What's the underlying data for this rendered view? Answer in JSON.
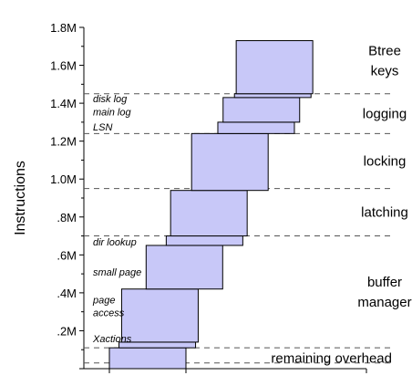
{
  "chart_data": {
    "type": "bar",
    "subtype": "floating-stacked",
    "ylabel": "Instructions",
    "yticks": [
      "",
      ".2M",
      ".4M",
      ".6M",
      ".8M",
      "1.0M",
      "1.2M",
      "1.4M",
      "1.6M",
      "1.8M"
    ],
    "ylim": [
      0,
      1800000
    ],
    "grid": false,
    "bars": [
      {
        "start": 0,
        "end": 110000
      },
      {
        "start": 110000,
        "end": 140000
      },
      {
        "start": 140000,
        "end": 420000
      },
      {
        "start": 420000,
        "end": 650000
      },
      {
        "start": 650000,
        "end": 700000
      },
      {
        "start": 700000,
        "end": 940000
      },
      {
        "start": 940000,
        "end": 1240000
      },
      {
        "start": 1240000,
        "end": 1300000
      },
      {
        "start": 1300000,
        "end": 1430000
      },
      {
        "start": 1430000,
        "end": 1450000
      },
      {
        "start": 1450000,
        "end": 1730000
      }
    ],
    "bands": [
      {
        "label": "remaining overhead",
        "low": 0,
        "high": 110000
      },
      {
        "label_lines": [
          "buffer",
          "manager"
        ],
        "low": 110000,
        "high": 700000
      },
      {
        "label": "latching",
        "low": 700000,
        "high": 950000
      },
      {
        "label": "locking",
        "low": 950000,
        "high": 1240000
      },
      {
        "label": "logging",
        "low": 1240000,
        "high": 1450000
      },
      {
        "label_lines": [
          "Btree",
          "keys"
        ],
        "low": 1450000,
        "high": 1800000
      }
    ],
    "band_boundaries": [
      30000,
      110000,
      700000,
      950000,
      1240000,
      1450000
    ],
    "component_labels": [
      {
        "text": "Xactions",
        "value": 160000
      },
      {
        "text_lines": [
          "page",
          "access"
        ],
        "value": 330000
      },
      {
        "text": "small page",
        "value": 510000
      },
      {
        "text": "dir lookup",
        "value": 670000
      },
      {
        "text": "LSN",
        "value": 1275000
      },
      {
        "text": "main log",
        "value": 1355000
      },
      {
        "text": "disk log",
        "value": 1425000
      }
    ],
    "colors": {
      "bar_fill": "#c8c8f8",
      "bar_stroke": "#000000",
      "divider": "#555555"
    }
  }
}
